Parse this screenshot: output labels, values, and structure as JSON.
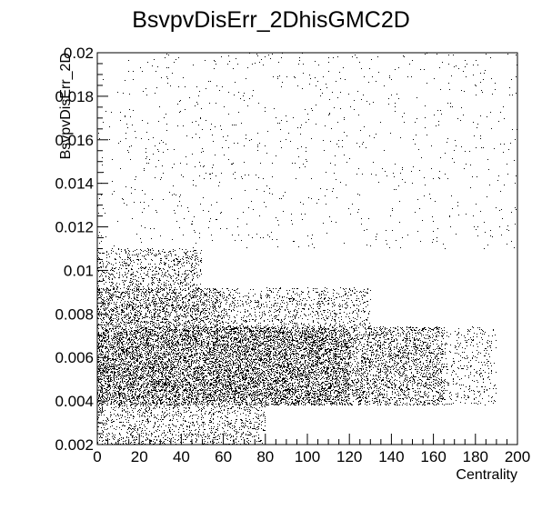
{
  "chart_data": {
    "type": "scatter",
    "title": "BsvpvDisErr_2DhisGMC2D",
    "xlabel": "Centrality",
    "ylabel": "BsvpvDisErr_2D",
    "xlim": [
      0,
      200
    ],
    "ylim": [
      0.002,
      0.02
    ],
    "x_ticks": [
      0,
      20,
      40,
      60,
      80,
      100,
      120,
      140,
      160,
      180,
      200
    ],
    "x_tick_labels": [
      "0",
      "20",
      "40",
      "60",
      "80",
      "100",
      "120",
      "140",
      "160",
      "180",
      "200"
    ],
    "y_ticks": [
      0.002,
      0.004,
      0.006,
      0.008,
      0.01,
      0.012,
      0.014,
      0.016,
      0.018,
      0.02
    ],
    "y_tick_labels": [
      "0.002",
      "0.004",
      "0.006",
      "0.008",
      "0.01",
      "0.012",
      "0.014",
      "0.016",
      "0.018",
      "0.02"
    ],
    "grid": false,
    "legend": "none",
    "point_color": "#000000",
    "density_regions": [
      {
        "x": [
          0,
          120
        ],
        "y": [
          0.0038,
          0.0074
        ],
        "density": 0.95
      },
      {
        "x": [
          120,
          165
        ],
        "y": [
          0.0038,
          0.0074
        ],
        "density": 0.5
      },
      {
        "x": [
          165,
          190
        ],
        "y": [
          0.0038,
          0.0074
        ],
        "density": 0.15
      },
      {
        "x": [
          0,
          60
        ],
        "y": [
          0.0074,
          0.0092
        ],
        "density": 0.6
      },
      {
        "x": [
          60,
          130
        ],
        "y": [
          0.0074,
          0.0092
        ],
        "density": 0.25
      },
      {
        "x": [
          0,
          50
        ],
        "y": [
          0.0092,
          0.011
        ],
        "density": 0.3
      },
      {
        "x": [
          0,
          80
        ],
        "y": [
          0.002,
          0.0038
        ],
        "density": 0.3
      },
      {
        "x": [
          0,
          200
        ],
        "y": [
          0.011,
          0.02
        ],
        "density": 0.02
      }
    ]
  }
}
